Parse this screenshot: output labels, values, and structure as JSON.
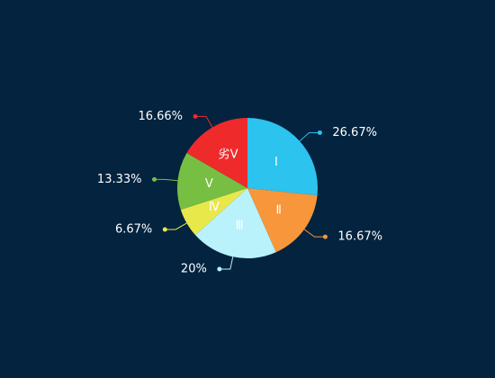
{
  "chart_data": {
    "type": "pie",
    "categories": [
      "Ⅰ",
      "Ⅱ",
      "Ⅲ",
      "Ⅳ",
      "Ⅴ",
      "劣Ⅴ"
    ],
    "values": [
      26.67,
      16.67,
      20,
      6.67,
      13.33,
      16.66
    ],
    "value_labels": [
      "26.67%",
      "16.67%",
      "20%",
      "6.67%",
      "13.33%",
      "16.66%"
    ],
    "colors": [
      "#2cc3ee",
      "#f7963a",
      "#b9f2fa",
      "#e9e84b",
      "#76bf43",
      "#ee2a2b"
    ]
  }
}
